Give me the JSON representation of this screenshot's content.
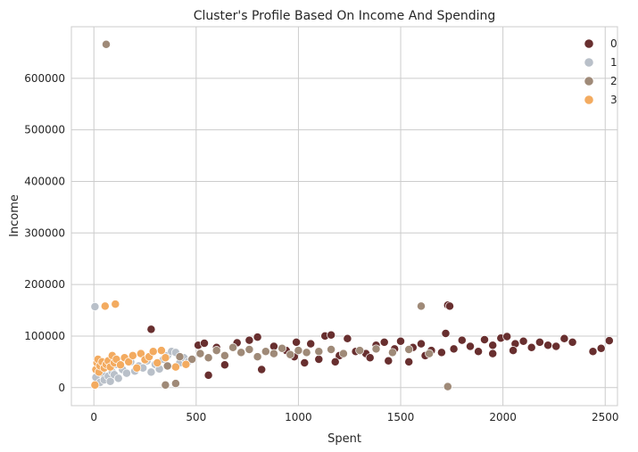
{
  "chart_data": {
    "type": "scatter",
    "title": "Cluster's Profile Based On Income And Spending",
    "xlabel": "Spent",
    "ylabel": "Income",
    "xlim": [
      -110,
      2560
    ],
    "ylim": [
      -35000,
      700000
    ],
    "xticks": [
      0,
      500,
      1000,
      1500,
      2000,
      2500
    ],
    "yticks": [
      0,
      100000,
      200000,
      300000,
      400000,
      500000,
      600000
    ],
    "grid": true,
    "legend_position": "top-right",
    "series": [
      {
        "name": "0",
        "color": "#682f2f",
        "points": [
          [
            280,
            113000
          ],
          [
            510,
            82000
          ],
          [
            540,
            86000
          ],
          [
            560,
            24000
          ],
          [
            600,
            78000
          ],
          [
            640,
            44000
          ],
          [
            700,
            87000
          ],
          [
            760,
            92000
          ],
          [
            800,
            98000
          ],
          [
            820,
            35000
          ],
          [
            880,
            80000
          ],
          [
            940,
            72000
          ],
          [
            990,
            88000
          ],
          [
            1030,
            48000
          ],
          [
            1060,
            85000
          ],
          [
            1100,
            55000
          ],
          [
            1130,
            100000
          ],
          [
            1160,
            102000
          ],
          [
            1200,
            62000
          ],
          [
            1240,
            95000
          ],
          [
            1280,
            70000
          ],
          [
            1330,
            66000
          ],
          [
            1380,
            82000
          ],
          [
            1420,
            88000
          ],
          [
            1440,
            52000
          ],
          [
            1500,
            90000
          ],
          [
            1540,
            50000
          ],
          [
            1560,
            78000
          ],
          [
            1600,
            85000
          ],
          [
            1650,
            72000
          ],
          [
            1700,
            68000
          ],
          [
            1720,
            105000
          ],
          [
            1730,
            160000
          ],
          [
            1740,
            158000
          ],
          [
            1760,
            75000
          ],
          [
            1800,
            92000
          ],
          [
            1840,
            80000
          ],
          [
            1880,
            70000
          ],
          [
            1910,
            93000
          ],
          [
            1950,
            82000
          ],
          [
            1990,
            96000
          ],
          [
            2020,
            99000
          ],
          [
            2060,
            85000
          ],
          [
            2100,
            90000
          ],
          [
            2140,
            78000
          ],
          [
            2180,
            88000
          ],
          [
            2220,
            82000
          ],
          [
            2260,
            80000
          ],
          [
            2300,
            95000
          ],
          [
            2340,
            88000
          ],
          [
            2440,
            70000
          ],
          [
            2480,
            76000
          ],
          [
            2520,
            91000
          ],
          [
            2050,
            72000
          ],
          [
            1950,
            66000
          ],
          [
            1620,
            62000
          ],
          [
            1470,
            75000
          ],
          [
            1350,
            58000
          ],
          [
            1180,
            50000
          ],
          [
            980,
            60000
          ]
        ]
      },
      {
        "name": "1",
        "color": "#b9c0c9",
        "points": [
          [
            5,
            157000
          ],
          [
            10,
            20000
          ],
          [
            20,
            35000
          ],
          [
            30,
            10000
          ],
          [
            40,
            28000
          ],
          [
            50,
            15000
          ],
          [
            60,
            40000
          ],
          [
            70,
            22000
          ],
          [
            80,
            12000
          ],
          [
            90,
            30000
          ],
          [
            100,
            25000
          ],
          [
            110,
            45000
          ],
          [
            120,
            18000
          ],
          [
            140,
            35000
          ],
          [
            160,
            28000
          ],
          [
            180,
            50000
          ],
          [
            200,
            32000
          ],
          [
            220,
            42000
          ],
          [
            240,
            38000
          ],
          [
            260,
            52000
          ],
          [
            280,
            30000
          ],
          [
            300,
            45000
          ],
          [
            320,
            36000
          ],
          [
            340,
            55000
          ],
          [
            360,
            62000
          ],
          [
            380,
            70000
          ],
          [
            400,
            68000
          ],
          [
            420,
            48000
          ],
          [
            440,
            58000
          ],
          [
            460,
            50000
          ]
        ]
      },
      {
        "name": "2",
        "color": "#9f8a78",
        "points": [
          [
            60,
            666000
          ],
          [
            350,
            5000
          ],
          [
            400,
            8000
          ],
          [
            360,
            42000
          ],
          [
            420,
            60000
          ],
          [
            480,
            55000
          ],
          [
            520,
            66000
          ],
          [
            560,
            58000
          ],
          [
            600,
            72000
          ],
          [
            640,
            62000
          ],
          [
            680,
            78000
          ],
          [
            720,
            68000
          ],
          [
            760,
            74000
          ],
          [
            800,
            60000
          ],
          [
            840,
            70000
          ],
          [
            880,
            66000
          ],
          [
            920,
            76000
          ],
          [
            960,
            64000
          ],
          [
            1000,
            72000
          ],
          [
            1040,
            68000
          ],
          [
            1100,
            70000
          ],
          [
            1160,
            74000
          ],
          [
            1220,
            66000
          ],
          [
            1300,
            72000
          ],
          [
            1380,
            75000
          ],
          [
            1460,
            68000
          ],
          [
            1540,
            74000
          ],
          [
            1600,
            158000
          ],
          [
            1640,
            66000
          ],
          [
            1730,
            2000
          ]
        ]
      },
      {
        "name": "3",
        "color": "#f3ab60",
        "points": [
          [
            5,
            5000
          ],
          [
            10,
            35000
          ],
          [
            15,
            48000
          ],
          [
            20,
            55000
          ],
          [
            25,
            30000
          ],
          [
            30,
            42000
          ],
          [
            40,
            50000
          ],
          [
            50,
            38000
          ],
          [
            55,
            158000
          ],
          [
            60,
            45000
          ],
          [
            70,
            52000
          ],
          [
            80,
            40000
          ],
          [
            90,
            62000
          ],
          [
            100,
            48000
          ],
          [
            105,
            162000
          ],
          [
            110,
            55000
          ],
          [
            130,
            44000
          ],
          [
            150,
            58000
          ],
          [
            170,
            50000
          ],
          [
            190,
            62000
          ],
          [
            210,
            38000
          ],
          [
            230,
            66000
          ],
          [
            250,
            54000
          ],
          [
            270,
            60000
          ],
          [
            290,
            70000
          ],
          [
            310,
            48000
          ],
          [
            330,
            72000
          ],
          [
            350,
            58000
          ],
          [
            400,
            40000
          ],
          [
            450,
            45000
          ]
        ]
      }
    ]
  }
}
